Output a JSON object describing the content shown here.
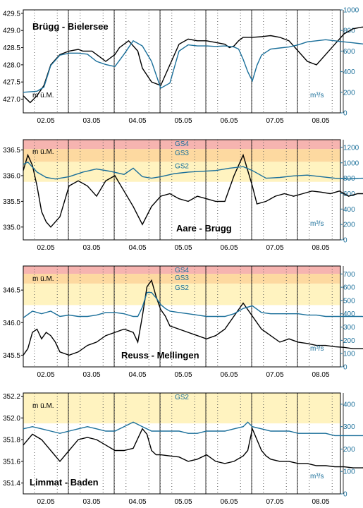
{
  "chart_data": [
    {
      "type": "line",
      "title": "Brügg - Bielersee",
      "ylabel": "m ü.M.",
      "y2label": "m³/s",
      "categories": [
        "02.05",
        "03.05",
        "04.05",
        "05.05",
        "06.05",
        "07.05",
        "08.05"
      ],
      "ylim": [
        426.6,
        429.6
      ],
      "yticks": [
        "427.0",
        "427.5",
        "428.0",
        "428.5",
        "429.0",
        "429.5"
      ],
      "y2lim": [
        0,
        1000
      ],
      "y2ticks": [
        "0",
        "200",
        "400",
        "600",
        "800",
        "1000"
      ],
      "zones": [],
      "series": [
        {
          "axis": "left",
          "color": "#000000",
          "x": [
            0,
            0.15,
            0.3,
            0.45,
            0.6,
            0.8,
            1.0,
            1.2,
            1.3,
            1.5,
            1.7,
            1.8,
            2.0,
            2.1,
            2.3,
            2.5,
            2.6,
            2.8,
            3.0,
            3.2,
            3.4,
            3.6,
            3.8,
            4.0,
            4.2,
            4.4,
            4.5,
            4.6,
            4.7,
            4.8,
            5.0,
            5.2,
            5.4,
            5.6,
            5.8,
            6.0,
            6.2,
            6.4,
            6.6,
            6.8,
            7.0,
            7.2,
            7.4,
            7.6,
            7.7
          ],
          "y": [
            427.1,
            426.9,
            427.1,
            427.4,
            428.0,
            428.3,
            428.4,
            428.45,
            428.4,
            428.4,
            428.2,
            428.1,
            428.3,
            428.5,
            428.7,
            428.4,
            427.9,
            427.5,
            427.4,
            428.0,
            428.6,
            428.75,
            428.7,
            428.7,
            428.65,
            428.6,
            428.5,
            428.55,
            428.7,
            428.8,
            428.8,
            428.82,
            428.85,
            428.8,
            428.7,
            428.4,
            428.1,
            428.0,
            428.3,
            428.6,
            428.9,
            429.05,
            429.1,
            429.05,
            429.0
          ]
        },
        {
          "axis": "right",
          "color": "#1a6f9a",
          "x": [
            0,
            0.3,
            0.45,
            0.6,
            0.8,
            1.0,
            1.2,
            1.4,
            1.6,
            1.8,
            2.0,
            2.2,
            2.4,
            2.6,
            2.8,
            3.0,
            3.2,
            3.4,
            3.6,
            3.8,
            4.0,
            4.2,
            4.4,
            4.6,
            4.7,
            4.8,
            4.9,
            5.0,
            5.1,
            5.2,
            5.4,
            5.6,
            5.8,
            6.0,
            6.2,
            6.4,
            6.6,
            6.8,
            7.0,
            7.2,
            7.4,
            7.6,
            7.7
          ],
          "y": [
            200,
            210,
            250,
            460,
            560,
            580,
            580,
            570,
            500,
            470,
            450,
            570,
            700,
            650,
            500,
            240,
            290,
            600,
            660,
            650,
            650,
            645,
            650,
            640,
            620,
            520,
            400,
            310,
            460,
            560,
            620,
            630,
            640,
            660,
            690,
            700,
            710,
            700,
            690,
            680,
            670,
            660,
            665
          ]
        }
      ]
    },
    {
      "type": "line",
      "title": "Aare - Brugg",
      "ylabel": "m ü.M.",
      "y2label": "m³/s",
      "categories": [
        "02.05",
        "03.05",
        "04.05",
        "05.05",
        "06.05",
        "07.05",
        "08.05"
      ],
      "ylim": [
        334.75,
        336.7
      ],
      "yticks": [
        "335.0",
        "335.5",
        "336.0",
        "336.5"
      ],
      "y2lim": [
        0,
        1300
      ],
      "y2ticks": [
        "0",
        "200",
        "400",
        "600",
        "800",
        "1000",
        "1200"
      ],
      "zones": [
        {
          "label": "GS2",
          "from": 335.88,
          "to": 336.27,
          "color": "#fff3c0"
        },
        {
          "label": "GS3",
          "from": 336.27,
          "to": 336.52,
          "color": "#fdd9a0"
        },
        {
          "label": "GS4",
          "from": 336.52,
          "to": 336.7,
          "color": "#f6b4b0"
        }
      ],
      "series": [
        {
          "axis": "left",
          "color": "#000000",
          "x": [
            0,
            0.1,
            0.2,
            0.3,
            0.4,
            0.5,
            0.6,
            0.8,
            1.0,
            1.2,
            1.4,
            1.6,
            1.8,
            2.0,
            2.2,
            2.4,
            2.6,
            2.8,
            3.0,
            3.2,
            3.4,
            3.6,
            3.8,
            4.0,
            4.2,
            4.4,
            4.6,
            4.8,
            5.0,
            5.1,
            5.3,
            5.5,
            5.7,
            5.9,
            6.1,
            6.3,
            6.5,
            6.7,
            6.9,
            7.1,
            7.3,
            7.5,
            7.7
          ],
          "y": [
            336.1,
            336.4,
            336.2,
            335.8,
            335.3,
            335.1,
            335.0,
            335.2,
            335.8,
            335.9,
            335.8,
            335.6,
            335.9,
            336.0,
            335.7,
            335.4,
            335.05,
            335.4,
            335.6,
            335.65,
            335.55,
            335.5,
            335.6,
            335.55,
            335.5,
            335.5,
            336.0,
            336.4,
            335.8,
            335.45,
            335.5,
            335.6,
            335.65,
            335.6,
            335.65,
            335.7,
            335.68,
            335.65,
            335.7,
            335.6,
            335.65,
            335.65,
            335.6
          ]
        },
        {
          "axis": "right",
          "color": "#1a6f9a",
          "x": [
            0,
            0.1,
            0.3,
            0.5,
            0.7,
            1.0,
            1.3,
            1.6,
            1.9,
            2.2,
            2.4,
            2.6,
            2.8,
            3.0,
            3.3,
            3.6,
            3.9,
            4.2,
            4.5,
            4.8,
            5.0,
            5.3,
            5.6,
            5.9,
            6.2,
            6.5,
            6.8,
            7.1,
            7.4,
            7.7
          ],
          "y": [
            980,
            1010,
            880,
            810,
            790,
            820,
            880,
            920,
            890,
            850,
            930,
            820,
            800,
            820,
            860,
            880,
            890,
            900,
            930,
            950,
            900,
            800,
            810,
            830,
            840,
            820,
            800,
            790,
            800,
            790
          ]
        }
      ]
    },
    {
      "type": "line",
      "title": "Reuss - Mellingen",
      "ylabel": "m ü.M.",
      "y2label": "m³/s",
      "categories": [
        "02.05",
        "03.05",
        "04.05",
        "05.05",
        "06.05",
        "07.05",
        "08.05"
      ],
      "ylim": [
        345.32,
        346.87
      ],
      "yticks": [
        "345.5",
        "346.0",
        "346.5"
      ],
      "y2lim": [
        0,
        760
      ],
      "y2ticks": [
        "0",
        "100",
        "200",
        "300",
        "400",
        "500",
        "600",
        "700"
      ],
      "zones": [
        {
          "label": "GS2",
          "from": 346.27,
          "to": 346.6,
          "color": "#fff3c0"
        },
        {
          "label": "GS3",
          "from": 346.6,
          "to": 346.75,
          "color": "#fdd9a0"
        },
        {
          "label": "GS4",
          "from": 346.75,
          "to": 346.87,
          "color": "#f6b4b0"
        }
      ],
      "series": [
        {
          "axis": "left",
          "color": "#000000",
          "x": [
            0,
            0.1,
            0.2,
            0.3,
            0.4,
            0.5,
            0.6,
            0.7,
            0.8,
            1.0,
            1.2,
            1.4,
            1.6,
            1.8,
            2.0,
            2.2,
            2.4,
            2.5,
            2.6,
            2.7,
            2.8,
            2.9,
            3.0,
            3.1,
            3.2,
            3.4,
            3.6,
            3.8,
            4.0,
            4.2,
            4.4,
            4.6,
            4.8,
            5.0,
            5.2,
            5.4,
            5.6,
            5.8,
            6.0,
            6.2,
            6.4,
            6.6,
            6.8,
            7.0,
            7.2,
            7.4,
            7.6,
            7.7
          ],
          "y": [
            345.5,
            345.6,
            345.85,
            345.9,
            345.75,
            345.85,
            345.8,
            345.7,
            345.55,
            345.5,
            345.55,
            345.65,
            345.7,
            345.8,
            345.85,
            345.9,
            345.85,
            345.7,
            346.1,
            346.55,
            346.65,
            346.4,
            346.2,
            346.1,
            345.95,
            345.9,
            345.85,
            345.8,
            345.75,
            345.8,
            345.9,
            346.1,
            346.3,
            346.1,
            345.9,
            345.8,
            345.7,
            345.75,
            345.7,
            345.68,
            345.65,
            345.65,
            345.63,
            345.62,
            345.6,
            345.6,
            345.6,
            345.58
          ]
        },
        {
          "axis": "right",
          "color": "#1a6f9a",
          "x": [
            0,
            0.2,
            0.4,
            0.6,
            0.8,
            1.0,
            1.2,
            1.4,
            1.6,
            1.8,
            2.0,
            2.2,
            2.4,
            2.5,
            2.6,
            2.7,
            2.8,
            2.9,
            3.0,
            3.1,
            3.2,
            3.4,
            3.6,
            3.8,
            4.0,
            4.2,
            4.4,
            4.6,
            4.8,
            5.0,
            5.2,
            5.4,
            5.6,
            5.8,
            6.0,
            6.2,
            6.4,
            6.6,
            6.8,
            7.0,
            7.2,
            7.4,
            7.6,
            7.7
          ],
          "y": [
            370,
            420,
            400,
            420,
            380,
            390,
            380,
            380,
            390,
            410,
            410,
            400,
            380,
            380,
            450,
            560,
            560,
            520,
            470,
            440,
            420,
            410,
            400,
            390,
            380,
            380,
            380,
            400,
            440,
            460,
            410,
            400,
            400,
            400,
            400,
            390,
            390,
            380,
            380,
            380,
            380,
            380,
            370,
            370
          ]
        }
      ]
    },
    {
      "type": "line",
      "title": "Limmat - Baden",
      "ylabel": "m ü.M.",
      "y2label": "m³/s",
      "categories": [
        "02.05",
        "03.05",
        "04.05",
        "05.05",
        "06.05",
        "07.05",
        "08.05"
      ],
      "ylim": [
        351.3,
        352.23
      ],
      "yticks": [
        "351.4",
        "351.6",
        "351.8",
        "352.0",
        "352.2"
      ],
      "y2lim": [
        0,
        450
      ],
      "y2ticks": [
        "0",
        "100",
        "200",
        "300",
        "400"
      ],
      "zones": [
        {
          "label": "GS2",
          "from": 351.95,
          "to": 352.23,
          "color": "#fff3c0"
        }
      ],
      "series": [
        {
          "axis": "left",
          "color": "#000000",
          "x": [
            0,
            0.2,
            0.4,
            0.6,
            0.8,
            1.0,
            1.2,
            1.4,
            1.6,
            1.8,
            2.0,
            2.2,
            2.4,
            2.6,
            2.7,
            2.8,
            2.9,
            3.0,
            3.2,
            3.4,
            3.6,
            3.8,
            4.0,
            4.2,
            4.4,
            4.6,
            4.8,
            4.9,
            5.0,
            5.1,
            5.2,
            5.3,
            5.4,
            5.6,
            5.8,
            6.0,
            6.2,
            6.4,
            6.6,
            6.8,
            7.0,
            7.2,
            7.4,
            7.6,
            7.7
          ],
          "y": [
            351.75,
            351.85,
            351.8,
            351.7,
            351.6,
            351.7,
            351.8,
            351.82,
            351.8,
            351.75,
            351.7,
            351.7,
            351.72,
            351.9,
            351.85,
            351.7,
            351.66,
            351.66,
            351.65,
            351.64,
            351.6,
            351.62,
            351.66,
            351.6,
            351.58,
            351.6,
            351.65,
            351.7,
            351.9,
            351.8,
            351.7,
            351.65,
            351.62,
            351.6,
            351.6,
            351.58,
            351.58,
            351.56,
            351.56,
            351.55,
            351.55,
            351.54,
            351.54,
            351.55,
            351.55
          ]
        },
        {
          "axis": "right",
          "color": "#1a6f9a",
          "x": [
            0,
            0.2,
            0.4,
            0.6,
            0.8,
            1.0,
            1.2,
            1.4,
            1.6,
            1.8,
            2.0,
            2.2,
            2.4,
            2.6,
            2.8,
            3.0,
            3.2,
            3.4,
            3.6,
            3.8,
            4.0,
            4.2,
            4.4,
            4.6,
            4.8,
            4.9,
            5.0,
            5.2,
            5.4,
            5.6,
            5.8,
            6.0,
            6.2,
            6.4,
            6.6,
            6.8,
            7.0,
            7.2,
            7.4,
            7.6,
            7.7
          ],
          "y": [
            290,
            300,
            290,
            280,
            270,
            280,
            290,
            300,
            290,
            280,
            280,
            300,
            320,
            300,
            280,
            280,
            280,
            280,
            270,
            270,
            280,
            280,
            280,
            290,
            300,
            320,
            300,
            290,
            280,
            280,
            280,
            270,
            270,
            270,
            270,
            260,
            260,
            260,
            260,
            260,
            260
          ]
        }
      ]
    }
  ]
}
